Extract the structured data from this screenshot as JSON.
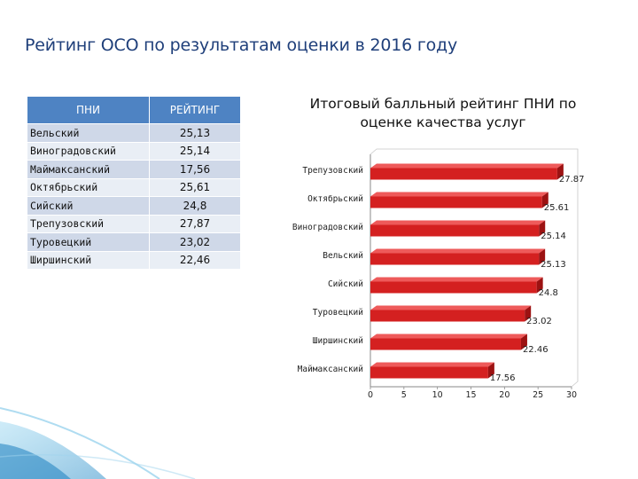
{
  "page": {
    "title": "Рейтинг ОСО по результатам оценки в 2016 году"
  },
  "table": {
    "headers": [
      "ПНИ",
      "РЕЙТИНГ"
    ],
    "rows": [
      {
        "name": "Вельский",
        "value": "25,13"
      },
      {
        "name": "Виноградовский",
        "value": "25,14"
      },
      {
        "name": "Маймаксанский",
        "value": "17,56"
      },
      {
        "name": "Октябрьский",
        "value": "25,61"
      },
      {
        "name": "Сийский",
        "value": "24,8"
      },
      {
        "name": "Трепузовский",
        "value": "27,87"
      },
      {
        "name": "Туровецкий",
        "value": "23,02"
      },
      {
        "name": "Ширшинский",
        "value": "22,46"
      }
    ]
  },
  "chart_data": {
    "type": "bar",
    "orientation": "horizontal",
    "title": "Итоговый балльный рейтинг ПНИ по оценке качества услуг",
    "categories": [
      "Трепузовский",
      "Октябрьский",
      "Виноградовский",
      "Вельский",
      "Сийский",
      "Туровецкий",
      "Ширшинский",
      "Маймаксанский"
    ],
    "values": [
      27.87,
      25.61,
      25.14,
      25.13,
      24.8,
      23.02,
      22.46,
      17.56
    ],
    "value_labels": [
      "27.87",
      "25.61",
      "25.14",
      "25.13",
      "24.8",
      "23.02",
      "22.46",
      "17.56"
    ],
    "xlim": [
      0,
      30
    ],
    "xticks": [
      "0",
      "5",
      "10",
      "15",
      "20",
      "25",
      "30"
    ],
    "bar_color": "#d42020",
    "grid": false,
    "legend": "none"
  },
  "colors": {
    "title": "#1f3f7a",
    "table_header": "#4e83c3",
    "row_odd": "#cfd8e8",
    "row_even": "#e9eef5",
    "decoration": "#2a9bd4"
  }
}
